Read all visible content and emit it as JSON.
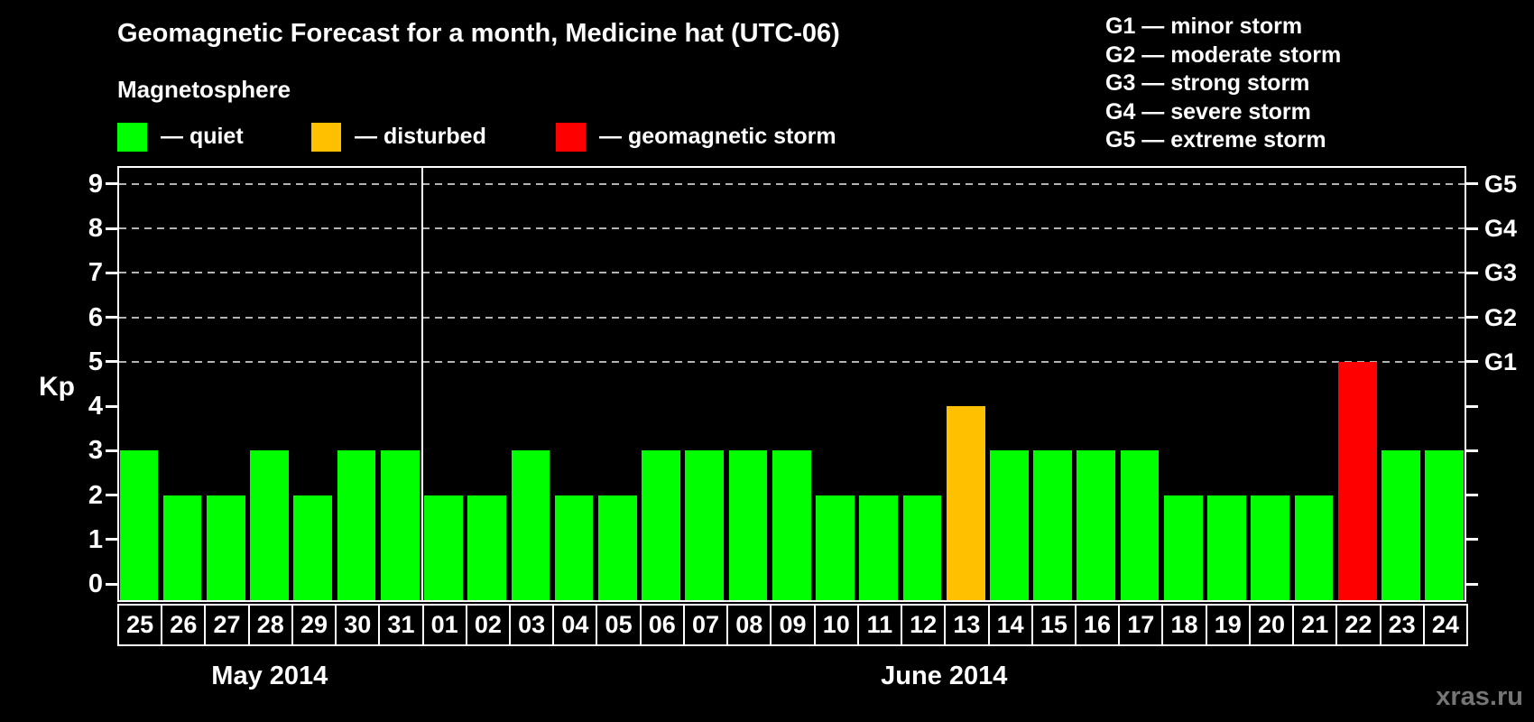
{
  "title": "Geomagnetic Forecast for a month, Medicine hat (UTC-06)",
  "subtitle": "Magnetosphere",
  "separator_glyph": "—",
  "legend": {
    "items": [
      {
        "label": "quiet",
        "status": "quiet",
        "color": "#00ff00"
      },
      {
        "label": "disturbed",
        "status": "disturbed",
        "color": "#ffc000"
      },
      {
        "label": "geomagnetic storm",
        "status": "storm",
        "color": "#ff0000"
      }
    ]
  },
  "g_legend": [
    {
      "code": "G1",
      "label": "minor storm"
    },
    {
      "code": "G2",
      "label": "moderate storm"
    },
    {
      "code": "G3",
      "label": "strong storm"
    },
    {
      "code": "G4",
      "label": "severe storm"
    },
    {
      "code": "G5",
      "label": "extreme storm"
    }
  ],
  "watermark": "xras.ru",
  "chart_data": {
    "type": "bar",
    "title": "Geomagnetic Forecast for a month, Medicine hat (UTC-06)",
    "ylabel": "Kp",
    "ylim": [
      -0.36,
      9.36
    ],
    "yticks": [
      0,
      1,
      2,
      3,
      4,
      5,
      6,
      7,
      8,
      9
    ],
    "dashed_gridlines_at": [
      5,
      6,
      7,
      8,
      9
    ],
    "right_axis": [
      {
        "kp": 5,
        "label": "G1"
      },
      {
        "kp": 6,
        "label": "G2"
      },
      {
        "kp": 7,
        "label": "G3"
      },
      {
        "kp": 8,
        "label": "G4"
      },
      {
        "kp": 9,
        "label": "G5"
      }
    ],
    "status_colors": {
      "quiet": "#00ff00",
      "disturbed": "#ffc000",
      "storm": "#ff0000"
    },
    "groups": [
      {
        "month": "May 2014",
        "bars": [
          {
            "day": "25",
            "kp": 3,
            "status": "quiet"
          },
          {
            "day": "26",
            "kp": 2,
            "status": "quiet"
          },
          {
            "day": "27",
            "kp": 2,
            "status": "quiet"
          },
          {
            "day": "28",
            "kp": 3,
            "status": "quiet"
          },
          {
            "day": "29",
            "kp": 2,
            "status": "quiet"
          },
          {
            "day": "30",
            "kp": 3,
            "status": "quiet"
          },
          {
            "day": "31",
            "kp": 3,
            "status": "quiet"
          }
        ]
      },
      {
        "month": "June 2014",
        "bars": [
          {
            "day": "01",
            "kp": 2,
            "status": "quiet"
          },
          {
            "day": "02",
            "kp": 2,
            "status": "quiet"
          },
          {
            "day": "03",
            "kp": 3,
            "status": "quiet"
          },
          {
            "day": "04",
            "kp": 2,
            "status": "quiet"
          },
          {
            "day": "05",
            "kp": 2,
            "status": "quiet"
          },
          {
            "day": "06",
            "kp": 3,
            "status": "quiet"
          },
          {
            "day": "07",
            "kp": 3,
            "status": "quiet"
          },
          {
            "day": "08",
            "kp": 3,
            "status": "quiet"
          },
          {
            "day": "09",
            "kp": 3,
            "status": "quiet"
          },
          {
            "day": "10",
            "kp": 2,
            "status": "quiet"
          },
          {
            "day": "11",
            "kp": 2,
            "status": "quiet"
          },
          {
            "day": "12",
            "kp": 2,
            "status": "quiet"
          },
          {
            "day": "13",
            "kp": 4,
            "status": "disturbed"
          },
          {
            "day": "14",
            "kp": 3,
            "status": "quiet"
          },
          {
            "day": "15",
            "kp": 3,
            "status": "quiet"
          },
          {
            "day": "16",
            "kp": 3,
            "status": "quiet"
          },
          {
            "day": "17",
            "kp": 3,
            "status": "quiet"
          },
          {
            "day": "18",
            "kp": 2,
            "status": "quiet"
          },
          {
            "day": "19",
            "kp": 2,
            "status": "quiet"
          },
          {
            "day": "20",
            "kp": 2,
            "status": "quiet"
          },
          {
            "day": "21",
            "kp": 2,
            "status": "quiet"
          },
          {
            "day": "22",
            "kp": 5,
            "status": "storm"
          },
          {
            "day": "23",
            "kp": 3,
            "status": "quiet"
          },
          {
            "day": "24",
            "kp": 3,
            "status": "quiet"
          }
        ]
      }
    ]
  }
}
